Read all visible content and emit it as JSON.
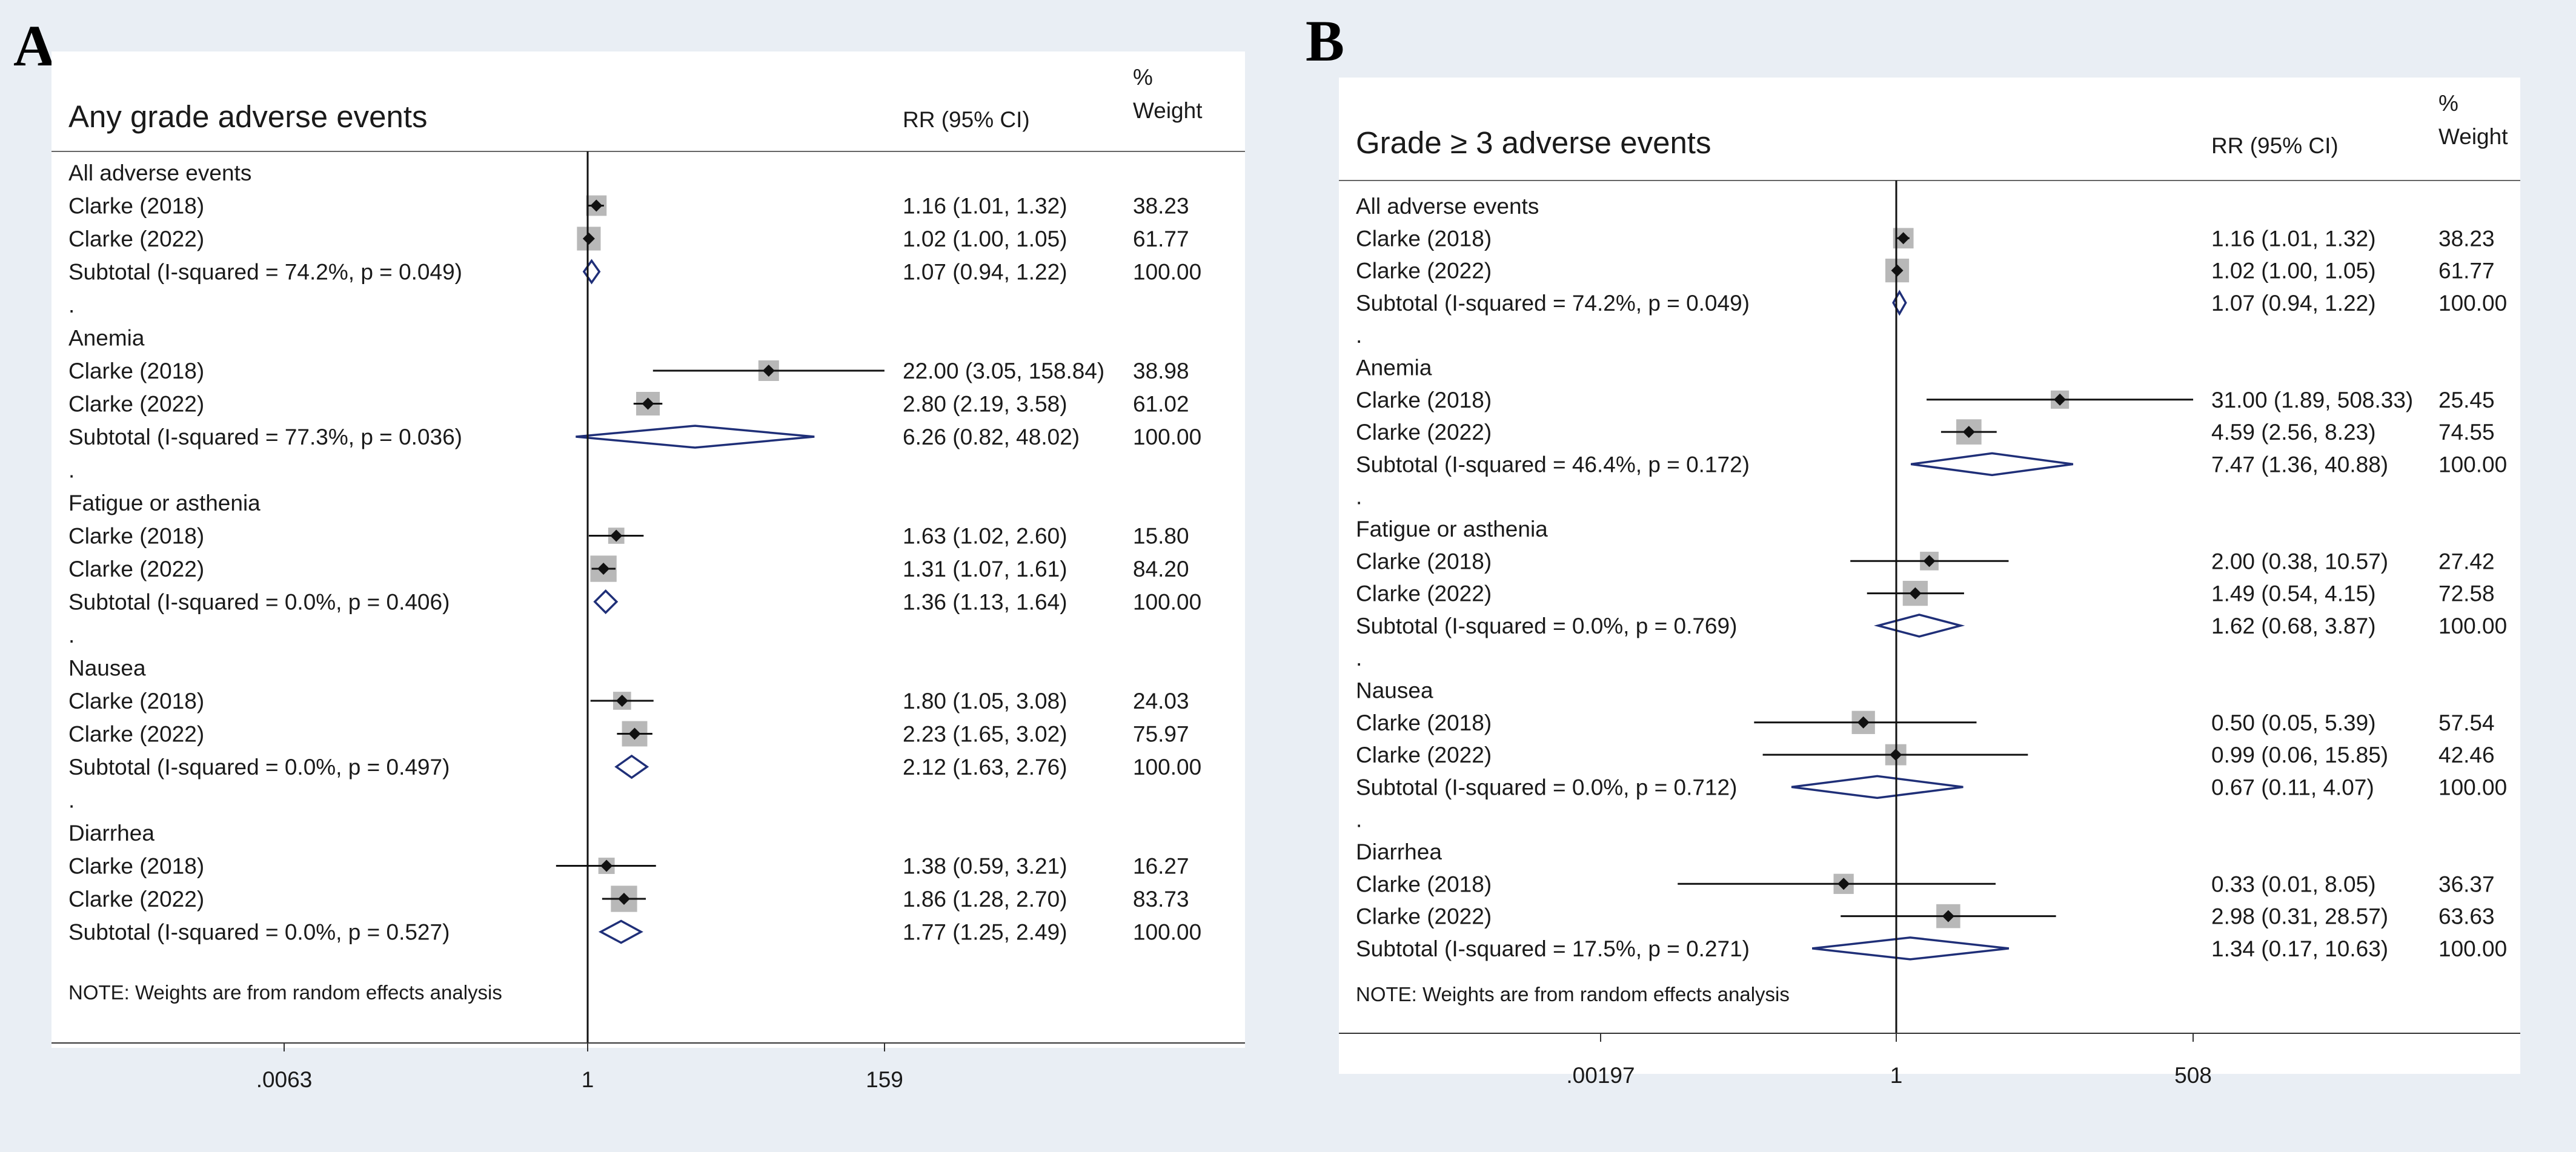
{
  "figure": {
    "panel_a_letter": "A",
    "panel_b_letter": "B"
  },
  "chart_data": [
    {
      "type": "forest",
      "panel": "A",
      "title": "Any grade adverse events",
      "col_rr": "RR (95% CI)",
      "col_w1": "%",
      "col_w2": "Weight",
      "note": "NOTE: Weights are from random effects analysis",
      "axis": {
        "min": 0.0063,
        "max": 159,
        "ticks": [
          {
            "v": 0.0063,
            "label": ".0063"
          },
          {
            "v": 1,
            "label": "1"
          },
          {
            "v": 159,
            "label": "159"
          }
        ]
      },
      "rows": [
        {
          "kind": "header",
          "label": "All adverse events"
        },
        {
          "kind": "study",
          "label": "Clarke (2018)",
          "rr": 1.16,
          "lo": 1.01,
          "hi": 1.32,
          "ci": "1.16 (1.01, 1.32)",
          "weight": "38.23"
        },
        {
          "kind": "study",
          "label": "Clarke (2022)",
          "rr": 1.02,
          "lo": 1.0,
          "hi": 1.05,
          "ci": "1.02 (1.00, 1.05)",
          "weight": "61.77"
        },
        {
          "kind": "subtotal",
          "label": "Subtotal  (I-squared = 74.2%, p = 0.049)",
          "rr": 1.07,
          "lo": 0.94,
          "hi": 1.22,
          "ci": "1.07 (0.94, 1.22)",
          "weight": "100.00"
        },
        {
          "kind": "sep",
          "label": "."
        },
        {
          "kind": "header",
          "label": "Anemia"
        },
        {
          "kind": "study",
          "label": "Clarke (2018)",
          "rr": 22.0,
          "lo": 3.05,
          "hi": 158.84,
          "ci": "22.00 (3.05, 158.84)",
          "weight": "38.98"
        },
        {
          "kind": "study",
          "label": "Clarke (2022)",
          "rr": 2.8,
          "lo": 2.19,
          "hi": 3.58,
          "ci": "2.80 (2.19, 3.58)",
          "weight": "61.02"
        },
        {
          "kind": "subtotal",
          "label": "Subtotal  (I-squared = 77.3%, p = 0.036)",
          "rr": 6.26,
          "lo": 0.82,
          "hi": 48.02,
          "ci": "6.26 (0.82, 48.02)",
          "weight": "100.00"
        },
        {
          "kind": "sep",
          "label": "."
        },
        {
          "kind": "header",
          "label": "Fatigue or asthenia"
        },
        {
          "kind": "study",
          "label": "Clarke (2018)",
          "rr": 1.63,
          "lo": 1.02,
          "hi": 2.6,
          "ci": "1.63 (1.02, 2.60)",
          "weight": "15.80"
        },
        {
          "kind": "study",
          "label": "Clarke (2022)",
          "rr": 1.31,
          "lo": 1.07,
          "hi": 1.61,
          "ci": "1.31 (1.07, 1.61)",
          "weight": "84.20"
        },
        {
          "kind": "subtotal",
          "label": "Subtotal  (I-squared = 0.0%, p = 0.406)",
          "rr": 1.36,
          "lo": 1.13,
          "hi": 1.64,
          "ci": "1.36 (1.13, 1.64)",
          "weight": "100.00"
        },
        {
          "kind": "sep",
          "label": "."
        },
        {
          "kind": "header",
          "label": "Nausea"
        },
        {
          "kind": "study",
          "label": "Clarke (2018)",
          "rr": 1.8,
          "lo": 1.05,
          "hi": 3.08,
          "ci": "1.80 (1.05, 3.08)",
          "weight": "24.03"
        },
        {
          "kind": "study",
          "label": "Clarke (2022)",
          "rr": 2.23,
          "lo": 1.65,
          "hi": 3.02,
          "ci": "2.23 (1.65, 3.02)",
          "weight": "75.97"
        },
        {
          "kind": "subtotal",
          "label": "Subtotal  (I-squared = 0.0%, p = 0.497)",
          "rr": 2.12,
          "lo": 1.63,
          "hi": 2.76,
          "ci": "2.12 (1.63, 2.76)",
          "weight": "100.00"
        },
        {
          "kind": "sep",
          "label": "."
        },
        {
          "kind": "header",
          "label": "Diarrhea"
        },
        {
          "kind": "study",
          "label": "Clarke (2018)",
          "rr": 1.38,
          "lo": 0.59,
          "hi": 3.21,
          "ci": "1.38 (0.59, 3.21)",
          "weight": "16.27"
        },
        {
          "kind": "study",
          "label": "Clarke (2022)",
          "rr": 1.86,
          "lo": 1.28,
          "hi": 2.7,
          "ci": "1.86 (1.28, 2.70)",
          "weight": "83.73"
        },
        {
          "kind": "subtotal",
          "label": "Subtotal  (I-squared = 0.0%, p = 0.527)",
          "rr": 1.77,
          "lo": 1.25,
          "hi": 2.49,
          "ci": "1.77 (1.25, 2.49)",
          "weight": "100.00"
        }
      ]
    },
    {
      "type": "forest",
      "panel": "B",
      "title": "Grade ≥ 3 adverse events",
      "col_rr": "RR (95% CI)",
      "col_w1": "%",
      "col_w2": "Weight",
      "note": "NOTE: Weights are from random effects analysis",
      "axis": {
        "min": 0.00197,
        "max": 508,
        "ticks": [
          {
            "v": 0.00197,
            "label": ".00197"
          },
          {
            "v": 1,
            "label": "1"
          },
          {
            "v": 508,
            "label": "508"
          }
        ]
      },
      "rows": [
        {
          "kind": "header",
          "label": "All adverse events"
        },
        {
          "kind": "study",
          "label": "Clarke (2018)",
          "rr": 1.16,
          "lo": 1.01,
          "hi": 1.32,
          "ci": "1.16 (1.01, 1.32)",
          "weight": "38.23"
        },
        {
          "kind": "study",
          "label": "Clarke (2022)",
          "rr": 1.02,
          "lo": 1.0,
          "hi": 1.05,
          "ci": "1.02 (1.00, 1.05)",
          "weight": "61.77"
        },
        {
          "kind": "subtotal",
          "label": "Subtotal  (I-squared = 74.2%, p = 0.049)",
          "rr": 1.07,
          "lo": 0.94,
          "hi": 1.22,
          "ci": "1.07 (0.94, 1.22)",
          "weight": "100.00"
        },
        {
          "kind": "sep",
          "label": "."
        },
        {
          "kind": "header",
          "label": "Anemia"
        },
        {
          "kind": "study",
          "label": "Clarke (2018)",
          "rr": 31.0,
          "lo": 1.89,
          "hi": 508.33,
          "ci": "31.00 (1.89, 508.33)",
          "weight": "25.45"
        },
        {
          "kind": "study",
          "label": "Clarke (2022)",
          "rr": 4.59,
          "lo": 2.56,
          "hi": 8.23,
          "ci": "4.59 (2.56, 8.23)",
          "weight": "74.55"
        },
        {
          "kind": "subtotal",
          "label": "Subtotal  (I-squared = 46.4%, p = 0.172)",
          "rr": 7.47,
          "lo": 1.36,
          "hi": 40.88,
          "ci": "7.47 (1.36, 40.88)",
          "weight": "100.00"
        },
        {
          "kind": "sep",
          "label": "."
        },
        {
          "kind": "header",
          "label": "Fatigue or asthenia"
        },
        {
          "kind": "study",
          "label": "Clarke (2018)",
          "rr": 2.0,
          "lo": 0.38,
          "hi": 10.57,
          "ci": "2.00 (0.38, 10.57)",
          "weight": "27.42"
        },
        {
          "kind": "study",
          "label": "Clarke (2022)",
          "rr": 1.49,
          "lo": 0.54,
          "hi": 4.15,
          "ci": "1.49 (0.54, 4.15)",
          "weight": "72.58"
        },
        {
          "kind": "subtotal",
          "label": "Subtotal  (I-squared = 0.0%, p = 0.769)",
          "rr": 1.62,
          "lo": 0.68,
          "hi": 3.87,
          "ci": "1.62 (0.68, 3.87)",
          "weight": "100.00"
        },
        {
          "kind": "sep",
          "label": "."
        },
        {
          "kind": "header",
          "label": "Nausea"
        },
        {
          "kind": "study",
          "label": "Clarke (2018)",
          "rr": 0.5,
          "lo": 0.05,
          "hi": 5.39,
          "ci": "0.50 (0.05, 5.39)",
          "weight": "57.54"
        },
        {
          "kind": "study",
          "label": "Clarke (2022)",
          "rr": 0.99,
          "lo": 0.06,
          "hi": 15.85,
          "ci": "0.99 (0.06, 15.85)",
          "weight": "42.46"
        },
        {
          "kind": "subtotal",
          "label": "Subtotal  (I-squared = 0.0%, p = 0.712)",
          "rr": 0.67,
          "lo": 0.11,
          "hi": 4.07,
          "ci": "0.67 (0.11, 4.07)",
          "weight": "100.00"
        },
        {
          "kind": "sep",
          "label": "."
        },
        {
          "kind": "header",
          "label": "Diarrhea"
        },
        {
          "kind": "study",
          "label": "Clarke (2018)",
          "rr": 0.33,
          "lo": 0.01,
          "hi": 8.05,
          "ci": "0.33 (0.01, 8.05)",
          "weight": "36.37"
        },
        {
          "kind": "study",
          "label": "Clarke (2022)",
          "rr": 2.98,
          "lo": 0.31,
          "hi": 28.57,
          "ci": "2.98 (0.31, 28.57)",
          "weight": "63.63"
        },
        {
          "kind": "subtotal",
          "label": "Subtotal  (I-squared = 17.5%, p = 0.271)",
          "rr": 1.34,
          "lo": 0.17,
          "hi": 10.63,
          "ci": "1.34 (0.17, 10.63)",
          "weight": "100.00"
        }
      ]
    }
  ]
}
